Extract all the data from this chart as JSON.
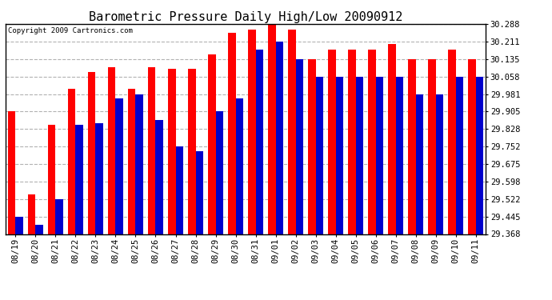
{
  "title": "Barometric Pressure Daily High/Low 20090912",
  "copyright": "Copyright 2009 Cartronics.com",
  "dates": [
    "08/19",
    "08/20",
    "08/21",
    "08/22",
    "08/23",
    "08/24",
    "08/25",
    "08/26",
    "08/27",
    "08/28",
    "08/29",
    "08/30",
    "08/31",
    "09/01",
    "09/02",
    "09/03",
    "09/04",
    "09/05",
    "09/06",
    "09/07",
    "09/08",
    "09/09",
    "09/10",
    "09/11"
  ],
  "highs": [
    29.905,
    29.54,
    29.848,
    30.005,
    30.078,
    30.097,
    30.005,
    30.097,
    30.09,
    30.09,
    30.155,
    30.248,
    30.262,
    30.288,
    30.262,
    30.135,
    30.175,
    30.175,
    30.175,
    30.2,
    30.135,
    30.135,
    30.175,
    30.135
  ],
  "lows": [
    29.445,
    29.41,
    29.522,
    29.848,
    29.855,
    29.962,
    29.981,
    29.868,
    29.752,
    29.732,
    29.905,
    29.962,
    30.175,
    30.211,
    30.135,
    30.058,
    30.058,
    30.058,
    30.058,
    30.058,
    29.981,
    29.981,
    30.058,
    30.058
  ],
  "high_color": "#FF0000",
  "low_color": "#0000CC",
  "background_color": "#FFFFFF",
  "plot_bg_color": "#FFFFFF",
  "grid_color": "#AAAAAA",
  "ymin": 29.368,
  "ymax": 30.288,
  "yticks": [
    29.368,
    29.445,
    29.522,
    29.598,
    29.675,
    29.752,
    29.828,
    29.905,
    29.981,
    30.058,
    30.135,
    30.211,
    30.288
  ],
  "title_fontsize": 11,
  "tick_fontsize": 7.5,
  "copyright_fontsize": 6.5,
  "bar_width": 0.38
}
